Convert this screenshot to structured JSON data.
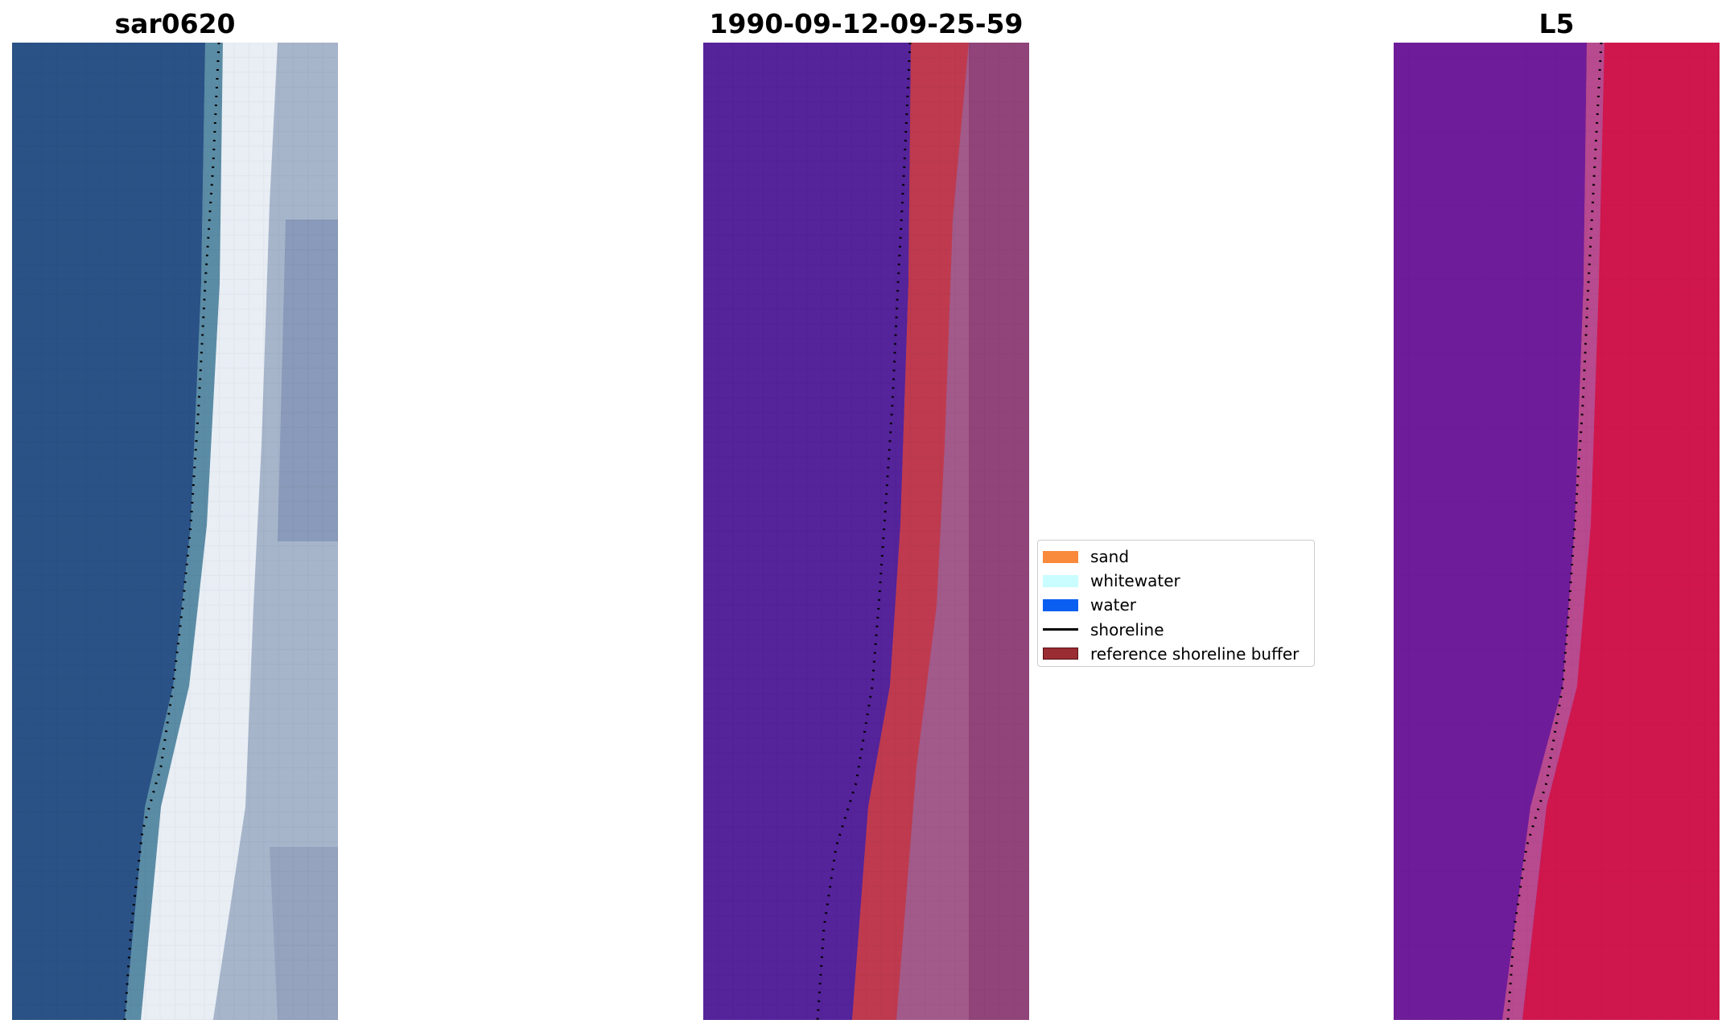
{
  "panels": [
    {
      "title": "sar0620",
      "kind": "rgb-image"
    },
    {
      "title": "1990-09-12-09-25-59",
      "kind": "classified-image"
    },
    {
      "title": "L5",
      "kind": "index-image"
    }
  ],
  "legend": {
    "items": [
      {
        "label": "sand",
        "color": "#f98a3c",
        "type": "patch"
      },
      {
        "label": "whitewater",
        "color": "#c9fdff",
        "type": "patch"
      },
      {
        "label": "water",
        "color": "#0a5ff0",
        "type": "patch"
      },
      {
        "label": "shoreline",
        "color": "#000000",
        "type": "line"
      },
      {
        "label": "reference shoreline buffer",
        "color": "#9a2d33",
        "type": "patch"
      }
    ]
  },
  "colors": {
    "ocean_blue": "#2a5286",
    "classified_water": "#55239a",
    "buffer_red": "#bf3a4e",
    "index_purple": "#6f1c9a",
    "index_red": "#c4003d"
  }
}
